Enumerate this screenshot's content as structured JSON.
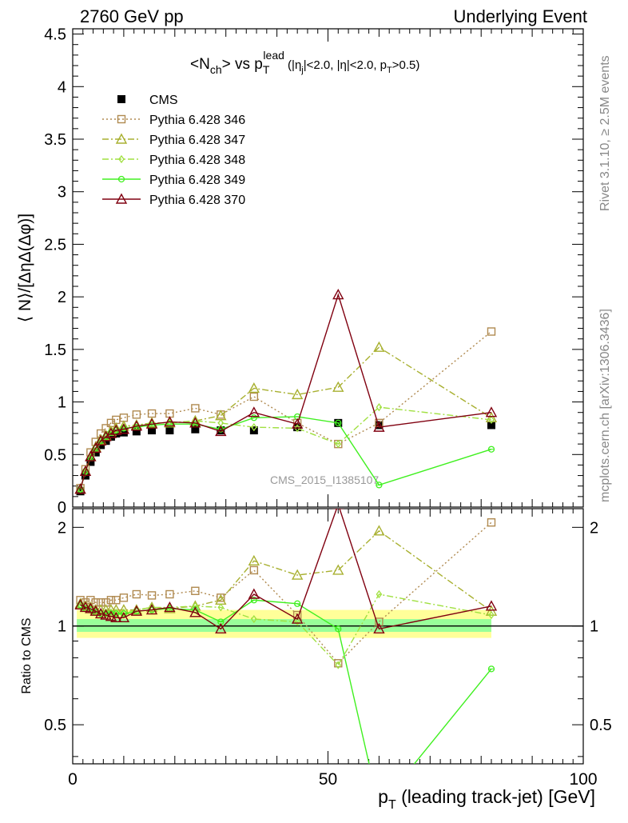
{
  "header": {
    "left": "2760 GeV pp",
    "right": "Underlying Event"
  },
  "title": {
    "main": "<N",
    "main_sub": "ch",
    "mid": "> vs p",
    "mid_sub": "T",
    "mid_sup": "lead",
    "cuts_1": " (|η",
    "cuts_1_sub": "j",
    "cuts_2": "|<2.0, |η|<2.0, p",
    "cuts_2_sub": "T",
    "cuts_3": ">0.5)"
  },
  "side_labels": {
    "rivet": "Rivet 3.1.10, ≥ 2.5M events",
    "mcplots": "mcplots.cern.ch [arXiv:1306.3436]"
  },
  "watermark": "CMS_2015_I1385107",
  "colors": {
    "cms": "#000000",
    "p346": "#b08a50",
    "p347": "#a8b030",
    "p348": "#a0e040",
    "p349": "#40f020",
    "p370": "#800010",
    "band_outer": "#ffff99",
    "band_inner": "#99ff99"
  },
  "chart_data": [
    {
      "type": "scatter",
      "panel": "main",
      "ylabel": "⟨ N⟩/[Δ​ηΔ(Δφ)]",
      "xlim": [
        0,
        100
      ],
      "ylim": [
        0,
        4.55
      ],
      "y_ticks": [
        "0",
        "0.5",
        "1",
        "1.5",
        "2",
        "2.5",
        "3",
        "3.5",
        "4",
        "4.5"
      ],
      "legend_position": "top-left",
      "x": [
        1.5,
        2.5,
        3.5,
        4.5,
        5.5,
        6.5,
        7.5,
        8.5,
        10,
        12.5,
        15.5,
        19,
        24,
        29,
        35.5,
        44,
        52,
        60,
        82
      ],
      "series": [
        {
          "name": "CMS",
          "marker": "filled-square",
          "values": [
            0.15,
            0.3,
            0.43,
            0.52,
            0.59,
            0.63,
            0.67,
            0.7,
            0.71,
            0.72,
            0.73,
            0.73,
            0.74,
            0.73,
            0.73,
            0.76,
            0.8,
            0.78,
            0.78
          ]
        },
        {
          "name": "Pythia 6.428 346",
          "marker": "open-square",
          "line": "dotted",
          "values": [
            0.18,
            0.36,
            0.52,
            0.62,
            0.7,
            0.75,
            0.8,
            0.83,
            0.85,
            0.88,
            0.89,
            0.89,
            0.94,
            0.88,
            1.05,
            0.8,
            0.6,
            0.8,
            1.67
          ]
        },
        {
          "name": "Pythia 6.428 347",
          "marker": "open-triangle",
          "line": "dash-dot",
          "values": [
            0.17,
            0.34,
            0.48,
            0.57,
            0.64,
            0.68,
            0.72,
            0.75,
            0.77,
            0.78,
            0.8,
            0.8,
            0.82,
            0.87,
            1.13,
            1.07,
            1.14,
            1.52,
            0.85
          ]
        },
        {
          "name": "Pythia 6.428 348",
          "marker": "open-diamond",
          "line": "dash-dot",
          "values": [
            0.17,
            0.33,
            0.48,
            0.57,
            0.64,
            0.68,
            0.72,
            0.74,
            0.76,
            0.78,
            0.8,
            0.8,
            0.82,
            0.8,
            0.76,
            0.75,
            0.6,
            0.95,
            0.83
          ]
        },
        {
          "name": "Pythia 6.428 349",
          "marker": "open-circle-cross",
          "line": "solid",
          "values": [
            0.17,
            0.34,
            0.47,
            0.56,
            0.63,
            0.67,
            0.71,
            0.73,
            0.75,
            0.76,
            0.78,
            0.79,
            0.79,
            0.74,
            0.85,
            0.86,
            0.8,
            0.21,
            0.55
          ]
        },
        {
          "name": "Pythia 6.428 370",
          "marker": "open-triangle",
          "line": "solid",
          "values": [
            0.17,
            0.34,
            0.48,
            0.56,
            0.63,
            0.67,
            0.7,
            0.73,
            0.74,
            0.77,
            0.79,
            0.81,
            0.8,
            0.72,
            0.9,
            0.79,
            2.02,
            0.76,
            0.9
          ]
        }
      ]
    },
    {
      "type": "scatter",
      "panel": "ratio",
      "xlabel": "p",
      "xlabel_sub": "T",
      "xlabel_rest": " (leading track-jet) [GeV]",
      "ylabel": "Ratio to CMS",
      "xlim": [
        0,
        100
      ],
      "ylim": [
        0.38,
        2.28
      ],
      "x_ticks": [
        "0",
        "50",
        "100"
      ],
      "y_ticks": [
        "0.5",
        "1",
        "2"
      ],
      "reference_value": 1.0,
      "series_ratio": {
        "Pythia 6.428 346": [
          1.2,
          1.18,
          1.2,
          1.18,
          1.18,
          1.18,
          1.2,
          1.2,
          1.22,
          1.25,
          1.24,
          1.25,
          1.28,
          1.22,
          1.48,
          1.08,
          0.77,
          1.03,
          2.07
        ],
        "Pythia 6.428 347": [
          1.17,
          1.15,
          1.14,
          1.12,
          1.12,
          1.12,
          1.12,
          1.12,
          1.12,
          1.12,
          1.14,
          1.13,
          1.15,
          1.2,
          1.58,
          1.43,
          1.48,
          1.95,
          1.11
        ],
        "Pythia 6.428 348": [
          1.16,
          1.13,
          1.13,
          1.11,
          1.1,
          1.1,
          1.1,
          1.1,
          1.1,
          1.12,
          1.14,
          1.14,
          1.15,
          1.14,
          1.05,
          1.03,
          0.76,
          1.25,
          1.08
        ],
        "Pythia 6.428 349": [
          1.16,
          1.13,
          1.12,
          1.1,
          1.09,
          1.09,
          1.09,
          1.09,
          1.09,
          1.11,
          1.12,
          1.13,
          1.12,
          1.03,
          1.2,
          1.17,
          0.98,
          0.28,
          0.74
        ],
        "Pythia 6.428 370": [
          1.16,
          1.14,
          1.13,
          1.11,
          1.09,
          1.08,
          1.07,
          1.06,
          1.06,
          1.11,
          1.12,
          1.14,
          1.1,
          0.98,
          1.25,
          1.05,
          2.35,
          0.98,
          1.15
        ]
      }
    }
  ]
}
